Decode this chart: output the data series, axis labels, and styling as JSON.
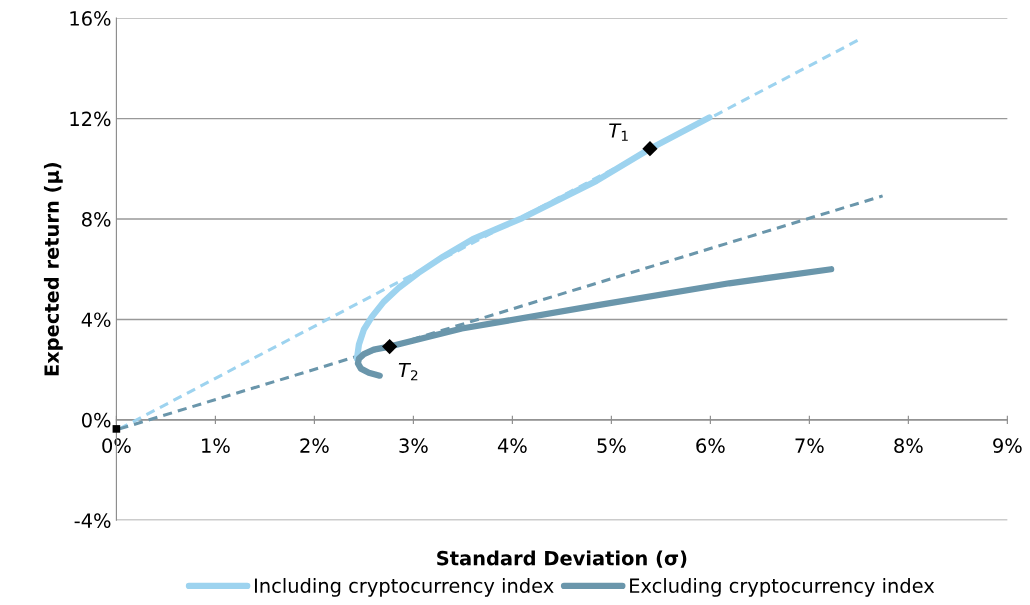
{
  "chart_data": {
    "type": "line",
    "xlabel": "Standard Deviation (σ)",
    "ylabel": "Expected return (μ)",
    "xlim": [
      0,
      9
    ],
    "ylim": [
      -4,
      16
    ],
    "xticks": [
      {
        "value": 0,
        "label": "0%"
      },
      {
        "value": 1,
        "label": "1%"
      },
      {
        "value": 2,
        "label": "2%"
      },
      {
        "value": 3,
        "label": "3%"
      },
      {
        "value": 4,
        "label": "4%"
      },
      {
        "value": 5,
        "label": "5%"
      },
      {
        "value": 6,
        "label": "6%"
      },
      {
        "value": 7,
        "label": "7%"
      },
      {
        "value": 8,
        "label": "8%"
      },
      {
        "value": 9,
        "label": "9%"
      }
    ],
    "yticks": [
      {
        "value": -4,
        "label": "-4%"
      },
      {
        "value": 0,
        "label": "0%"
      },
      {
        "value": 4,
        "label": "4%"
      },
      {
        "value": 8,
        "label": "8%"
      },
      {
        "value": 12,
        "label": "12%"
      },
      {
        "value": 16,
        "label": "16%"
      }
    ],
    "grid": "y",
    "legend": "bottom",
    "series": [
      {
        "type": "line",
        "line_style": "dashed",
        "color": "#9dd3ef",
        "x": [
          0.03,
          7.51
        ],
        "values": [
          -0.36,
          15.16
        ]
      },
      {
        "type": "line",
        "line_style": "dashed",
        "color": "#6a96ab",
        "x": [
          0.03,
          7.74
        ],
        "values": [
          -0.36,
          8.92
        ]
      },
      {
        "name": "Including cryptocurrency index",
        "color": "#9dd3ef",
        "x": [
          2.43,
          2.45,
          2.5,
          2.58,
          2.7,
          2.85,
          3.05,
          3.3,
          3.6,
          4.1,
          4.85,
          5.39,
          5.99
        ],
        "values": [
          2.44,
          3.0,
          3.6,
          4.1,
          4.7,
          5.25,
          5.85,
          6.5,
          7.2,
          8.04,
          9.52,
          10.8,
          12.04
        ]
      },
      {
        "name": "Excluding cryptocurrency index",
        "color": "#6a96ab",
        "x": [
          2.66,
          2.55,
          2.47,
          2.44,
          2.45,
          2.5,
          2.6,
          2.76,
          3.49,
          4.85,
          6.19,
          7.22
        ],
        "values": [
          1.76,
          1.88,
          2.04,
          2.25,
          2.44,
          2.62,
          2.8,
          2.92,
          3.64,
          4.56,
          5.44,
          6.0
        ]
      },
      {
        "type": "scatter",
        "marker": "diamond",
        "color": "#000000",
        "x": [
          5.39,
          2.76
        ],
        "values": [
          10.8,
          2.92
        ]
      },
      {
        "type": "scatter",
        "marker": "square",
        "color": "#000000",
        "x": [
          0
        ],
        "values": [
          -0.36
        ]
      }
    ],
    "annotations": [
      {
        "text": "T$_{1}$",
        "x": 5.39,
        "y": 10.8
      },
      {
        "text": "T$_{2}$",
        "x": 2.76,
        "y": 2.92
      }
    ]
  }
}
